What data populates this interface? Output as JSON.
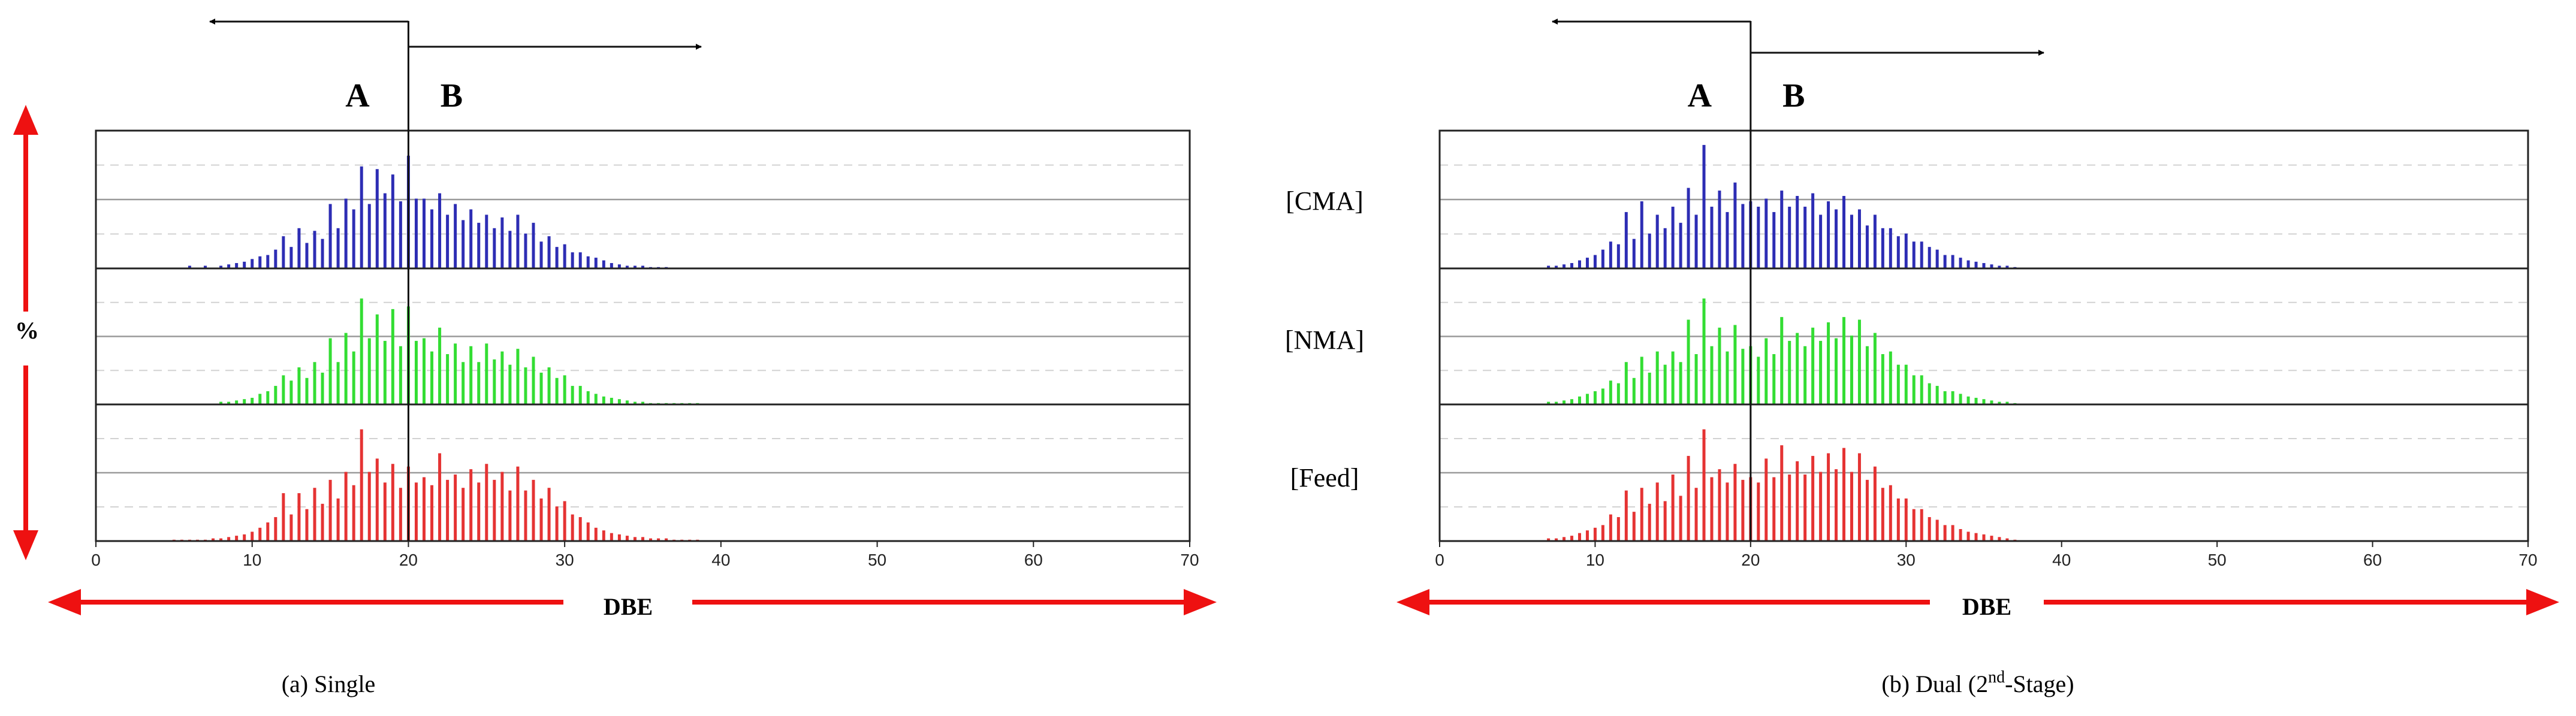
{
  "colors": {
    "cma": "#2d2db4",
    "nma": "#33dd33",
    "feed": "#e53333",
    "arrow_red": "#ee1111",
    "grid": "#bbbbbb",
    "axis": "#222222"
  },
  "figure": {
    "y_label": "%",
    "series_labels": [
      "[CMA]",
      "[NMA]",
      "[Feed]"
    ]
  },
  "chart_data": [
    {
      "type": "bar",
      "subplot": "single",
      "caption": "(a) Single",
      "xlabel": "DBE",
      "xlim": [
        0,
        70
      ],
      "xticks": [
        "0",
        "10",
        "20",
        "30",
        "40",
        "50",
        "60",
        "70"
      ],
      "divider_x": 20,
      "region_labels": [
        "A",
        "B"
      ],
      "grid": true,
      "x": [
        5,
        5.5,
        6,
        6.5,
        7,
        7.5,
        8,
        8.5,
        9,
        9.5,
        10,
        10.5,
        11,
        11.5,
        12,
        12.5,
        13,
        13.5,
        14,
        14.5,
        15,
        15.5,
        16,
        16.5,
        17,
        17.5,
        18,
        18.5,
        19,
        19.5,
        20,
        20.5,
        21,
        21.5,
        22,
        22.5,
        23,
        23.5,
        24,
        24.5,
        25,
        25.5,
        26,
        26.5,
        27,
        27.5,
        28,
        28.5,
        29,
        29.5,
        30,
        30.5,
        31,
        31.5,
        32,
        32.5,
        33,
        33.5,
        34,
        34.5,
        35,
        35.5,
        36,
        36.5,
        37,
        37.5,
        38,
        38.5,
        39,
        39.5,
        40
      ],
      "series": [
        {
          "name": "[CMA]",
          "values": [
            0,
            0,
            2,
            0,
            2,
            0,
            2,
            3,
            4,
            5,
            7,
            9,
            10,
            14,
            24,
            16,
            30,
            19,
            28,
            22,
            48,
            30,
            52,
            44,
            76,
            48,
            74,
            56,
            70,
            50,
            84,
            52,
            52,
            44,
            56,
            40,
            48,
            36,
            44,
            34,
            40,
            30,
            38,
            28,
            40,
            26,
            34,
            20,
            24,
            16,
            18,
            12,
            12,
            9,
            8,
            6,
            4,
            3,
            2,
            2,
            2,
            1,
            1,
            1,
            0,
            0,
            0,
            0,
            0,
            0,
            0
          ]
        },
        {
          "name": "[NMA]",
          "values": [
            0,
            0,
            0,
            0,
            0,
            0,
            2,
            2,
            3,
            4,
            5,
            8,
            10,
            14,
            22,
            18,
            28,
            20,
            32,
            24,
            50,
            32,
            54,
            40,
            80,
            50,
            68,
            48,
            72,
            44,
            74,
            48,
            50,
            40,
            58,
            38,
            46,
            32,
            44,
            32,
            46,
            34,
            40,
            30,
            42,
            28,
            36,
            24,
            28,
            20,
            22,
            14,
            14,
            10,
            8,
            6,
            5,
            4,
            3,
            2,
            2,
            1,
            1,
            1,
            1,
            1,
            1,
            1,
            0,
            0,
            0
          ]
        },
        {
          "name": "[Feed]",
          "values": [
            1,
            1,
            1,
            1,
            1,
            2,
            2,
            3,
            4,
            5,
            7,
            10,
            14,
            18,
            36,
            20,
            36,
            24,
            40,
            28,
            46,
            32,
            52,
            42,
            84,
            52,
            62,
            44,
            58,
            40,
            56,
            44,
            48,
            42,
            66,
            46,
            50,
            40,
            54,
            44,
            58,
            46,
            52,
            38,
            56,
            38,
            46,
            32,
            40,
            26,
            30,
            20,
            18,
            14,
            10,
            8,
            6,
            5,
            4,
            3,
            3,
            2,
            2,
            2,
            1,
            1,
            1,
            1,
            0,
            0,
            0
          ]
        }
      ]
    },
    {
      "type": "bar",
      "subplot": "dual",
      "caption_main": "(b) Dual (2",
      "caption_sup": "nd",
      "caption_end": "-Stage)",
      "xlabel": "DBE",
      "xlim": [
        0,
        70
      ],
      "xticks": [
        "0",
        "10",
        "20",
        "30",
        "40",
        "50",
        "60",
        "70"
      ],
      "divider_x": 20,
      "region_labels": [
        "A",
        "B"
      ],
      "grid": true,
      "x": [
        7,
        7.5,
        8,
        8.5,
        9,
        9.5,
        10,
        10.5,
        11,
        11.5,
        12,
        12.5,
        13,
        13.5,
        14,
        14.5,
        15,
        15.5,
        16,
        16.5,
        17,
        17.5,
        18,
        18.5,
        19,
        19.5,
        20,
        20.5,
        21,
        21.5,
        22,
        22.5,
        23,
        23.5,
        24,
        24.5,
        25,
        25.5,
        26,
        26.5,
        27,
        27.5,
        28,
        28.5,
        29,
        29.5,
        30,
        30.5,
        31,
        31.5,
        32,
        32.5,
        33,
        33.5,
        34,
        34.5,
        35,
        35.5,
        36,
        36.5,
        37
      ],
      "series": [
        {
          "name": "[CMA]",
          "values": [
            2,
            2,
            3,
            4,
            6,
            8,
            10,
            14,
            20,
            18,
            42,
            22,
            50,
            26,
            40,
            30,
            46,
            34,
            60,
            40,
            92,
            46,
            58,
            42,
            64,
            48,
            50,
            46,
            52,
            42,
            58,
            46,
            54,
            46,
            56,
            40,
            50,
            44,
            54,
            40,
            44,
            32,
            40,
            30,
            30,
            24,
            26,
            20,
            20,
            16,
            14,
            10,
            10,
            8,
            6,
            5,
            4,
            3,
            2,
            2,
            1
          ]
        },
        {
          "name": "[NMA]",
          "values": [
            2,
            2,
            3,
            4,
            6,
            8,
            10,
            12,
            18,
            16,
            32,
            20,
            36,
            24,
            40,
            30,
            40,
            32,
            64,
            38,
            80,
            44,
            58,
            40,
            60,
            42,
            44,
            36,
            50,
            38,
            66,
            48,
            54,
            44,
            58,
            48,
            62,
            50,
            66,
            52,
            64,
            44,
            54,
            38,
            40,
            30,
            30,
            22,
            22,
            16,
            14,
            10,
            10,
            8,
            6,
            5,
            4,
            3,
            2,
            2,
            1
          ]
        },
        {
          "name": "[Feed]",
          "values": [
            2,
            2,
            3,
            4,
            6,
            8,
            10,
            12,
            20,
            18,
            38,
            22,
            40,
            28,
            44,
            30,
            50,
            34,
            64,
            40,
            84,
            48,
            54,
            44,
            58,
            46,
            48,
            44,
            62,
            48,
            72,
            50,
            60,
            50,
            64,
            52,
            66,
            54,
            70,
            52,
            66,
            46,
            56,
            40,
            42,
            32,
            32,
            24,
            24,
            18,
            16,
            12,
            12,
            9,
            7,
            6,
            5,
            4,
            3,
            2,
            1
          ]
        }
      ]
    }
  ]
}
